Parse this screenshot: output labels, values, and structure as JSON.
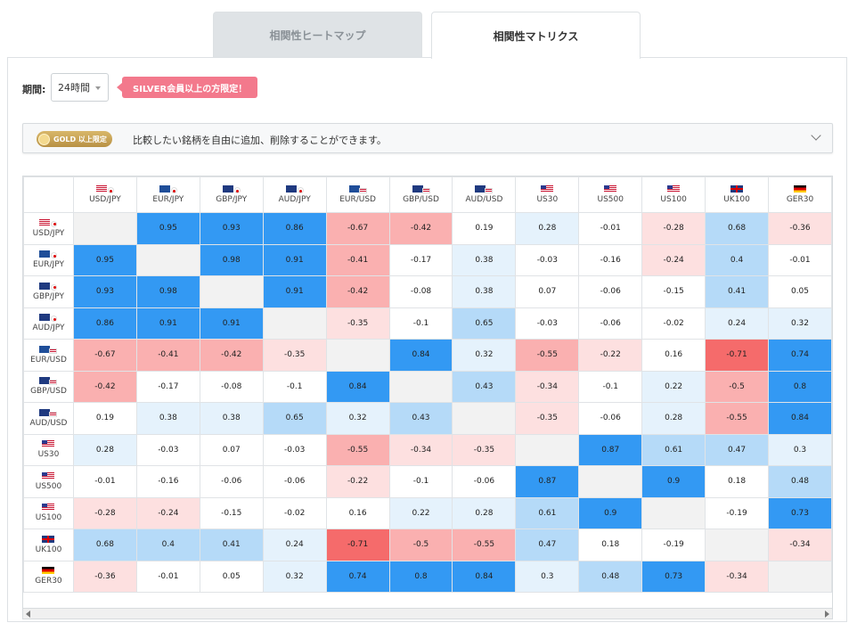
{
  "tabs": {
    "heatmap": "相関性ヒートマップ",
    "matrix": "相関性マトリクス"
  },
  "period": {
    "label": "期間:",
    "value": "24時間"
  },
  "silver_badge": "SILVER会員以上の方限定！",
  "gold": {
    "badge": "GOLD 以上限定",
    "text": "比較したい銘柄を自由に追加、削除することができます。"
  },
  "symbols": [
    {
      "label": "USD/JPY",
      "flag": "usjp"
    },
    {
      "label": "EUR/JPY",
      "flag": "eujp"
    },
    {
      "label": "GBP/JPY",
      "flag": "gbjp"
    },
    {
      "label": "AUD/JPY",
      "flag": "aujp"
    },
    {
      "label": "EUR/USD",
      "flag": "euus"
    },
    {
      "label": "GBP/USD",
      "flag": "gbus"
    },
    {
      "label": "AUD/USD",
      "flag": "auus"
    },
    {
      "label": "US30",
      "flag": "us"
    },
    {
      "label": "US500",
      "flag": "us"
    },
    {
      "label": "US100",
      "flag": "us"
    },
    {
      "label": "UK100",
      "flag": "gb"
    },
    {
      "label": "GER30",
      "flag": "de"
    }
  ],
  "matrix": [
    [
      null,
      0.95,
      0.93,
      0.86,
      -0.67,
      -0.42,
      0.19,
      0.28,
      -0.01,
      -0.28,
      0.68,
      -0.36
    ],
    [
      0.95,
      null,
      0.98,
      0.91,
      -0.41,
      -0.17,
      0.38,
      -0.03,
      -0.16,
      -0.24,
      0.4,
      -0.01
    ],
    [
      0.93,
      0.98,
      null,
      0.91,
      -0.42,
      -0.08,
      0.38,
      0.07,
      -0.06,
      -0.15,
      0.41,
      0.05
    ],
    [
      0.86,
      0.91,
      0.91,
      null,
      -0.35,
      -0.1,
      0.65,
      -0.03,
      -0.06,
      -0.02,
      0.24,
      0.32
    ],
    [
      -0.67,
      -0.41,
      -0.42,
      -0.35,
      null,
      0.84,
      0.32,
      -0.55,
      -0.22,
      0.16,
      -0.71,
      0.74
    ],
    [
      -0.42,
      -0.17,
      -0.08,
      -0.1,
      0.84,
      null,
      0.43,
      -0.34,
      -0.1,
      0.22,
      -0.5,
      0.8
    ],
    [
      0.19,
      0.38,
      0.38,
      0.65,
      0.32,
      0.43,
      null,
      -0.35,
      -0.06,
      0.28,
      -0.55,
      0.84
    ],
    [
      0.28,
      -0.03,
      0.07,
      -0.03,
      -0.55,
      -0.34,
      -0.35,
      null,
      0.87,
      0.61,
      0.47,
      0.3
    ],
    [
      -0.01,
      -0.16,
      -0.06,
      -0.06,
      -0.22,
      -0.1,
      -0.06,
      0.87,
      null,
      0.9,
      0.18,
      0.48
    ],
    [
      -0.28,
      -0.24,
      -0.15,
      -0.02,
      0.16,
      0.22,
      0.28,
      0.61,
      0.9,
      null,
      -0.19,
      0.73
    ],
    [
      0.68,
      0.4,
      0.41,
      0.24,
      -0.71,
      -0.5,
      -0.55,
      0.47,
      0.18,
      -0.19,
      null,
      -0.34
    ],
    [
      -0.36,
      -0.01,
      0.05,
      0.32,
      0.74,
      0.8,
      0.84,
      0.3,
      0.48,
      0.73,
      -0.34,
      null
    ]
  ],
  "colors": {
    "strong_pos": "#3399f3",
    "mid_pos": "#b5daf8",
    "weak_pos": "#e5f2fc",
    "strong_neg": "#f56b6b",
    "mid_neg": "#fab0b0",
    "weak_neg": "#fde0e0",
    "neutral": "#ffffff",
    "diagonal": "#f2f2f2"
  }
}
